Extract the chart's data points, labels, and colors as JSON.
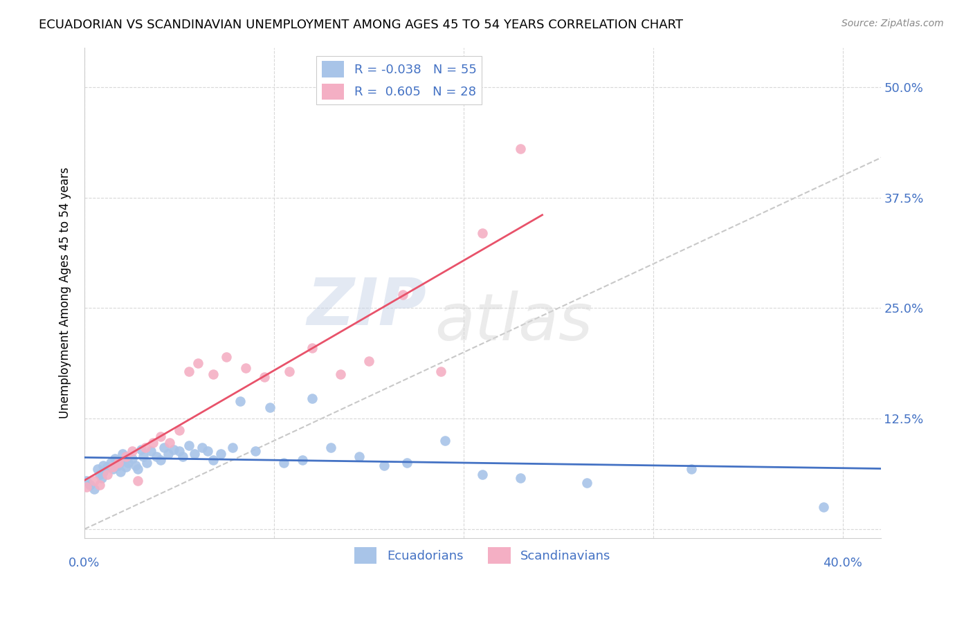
{
  "title": "ECUADORIAN VS SCANDINAVIAN UNEMPLOYMENT AMONG AGES 45 TO 54 YEARS CORRELATION CHART",
  "source": "Source: ZipAtlas.com",
  "ylabel": "Unemployment Among Ages 45 to 54 years",
  "xlim": [
    0.0,
    0.42
  ],
  "ylim": [
    -0.01,
    0.545
  ],
  "xticks": [
    0.0,
    0.1,
    0.2,
    0.3,
    0.4
  ],
  "yticks": [
    0.0,
    0.125,
    0.25,
    0.375,
    0.5
  ],
  "yticklabels": [
    "",
    "12.5%",
    "25.0%",
    "37.5%",
    "50.0%"
  ],
  "watermark_zip": "ZIP",
  "watermark_atlas": "atlas",
  "ecuadorians_R": "-0.038",
  "ecuadorians_N": "55",
  "scandinavians_R": "0.605",
  "scandinavians_N": "28",
  "blue_color": "#a8c4e8",
  "pink_color": "#f4afc4",
  "blue_line_color": "#4472c4",
  "pink_line_color": "#e8526a",
  "diagonal_color": "#c8c8c8",
  "legend_text_color": "#4472c4",
  "background_color": "#ffffff",
  "grid_color": "#d8d8d8",
  "ecuadorians_x": [
    0.001,
    0.003,
    0.005,
    0.007,
    0.008,
    0.009,
    0.01,
    0.01,
    0.012,
    0.014,
    0.015,
    0.016,
    0.018,
    0.019,
    0.02,
    0.021,
    0.022,
    0.023,
    0.025,
    0.027,
    0.028,
    0.03,
    0.031,
    0.033,
    0.035,
    0.038,
    0.04,
    0.042,
    0.044,
    0.047,
    0.05,
    0.052,
    0.055,
    0.058,
    0.062,
    0.065,
    0.068,
    0.072,
    0.078,
    0.082,
    0.09,
    0.098,
    0.105,
    0.115,
    0.12,
    0.13,
    0.145,
    0.158,
    0.17,
    0.19,
    0.21,
    0.23,
    0.265,
    0.32,
    0.39
  ],
  "ecuadorians_y": [
    0.055,
    0.05,
    0.045,
    0.068,
    0.062,
    0.058,
    0.072,
    0.065,
    0.07,
    0.075,
    0.068,
    0.08,
    0.072,
    0.065,
    0.085,
    0.078,
    0.07,
    0.075,
    0.08,
    0.072,
    0.068,
    0.09,
    0.082,
    0.075,
    0.088,
    0.082,
    0.078,
    0.092,
    0.085,
    0.09,
    0.088,
    0.082,
    0.095,
    0.085,
    0.092,
    0.088,
    0.078,
    0.085,
    0.092,
    0.145,
    0.088,
    0.138,
    0.075,
    0.078,
    0.148,
    0.092,
    0.082,
    0.072,
    0.075,
    0.1,
    0.062,
    0.058,
    0.052,
    0.068,
    0.025
  ],
  "scandinavians_x": [
    0.001,
    0.005,
    0.008,
    0.012,
    0.015,
    0.018,
    0.022,
    0.025,
    0.028,
    0.032,
    0.036,
    0.04,
    0.045,
    0.05,
    0.055,
    0.06,
    0.068,
    0.075,
    0.085,
    0.095,
    0.108,
    0.12,
    0.135,
    0.15,
    0.168,
    0.188,
    0.21,
    0.23
  ],
  "scandinavians_y": [
    0.048,
    0.055,
    0.05,
    0.062,
    0.07,
    0.075,
    0.082,
    0.088,
    0.055,
    0.092,
    0.098,
    0.105,
    0.098,
    0.112,
    0.178,
    0.188,
    0.175,
    0.195,
    0.182,
    0.172,
    0.178,
    0.205,
    0.175,
    0.19,
    0.265,
    0.178,
    0.335,
    0.43
  ]
}
